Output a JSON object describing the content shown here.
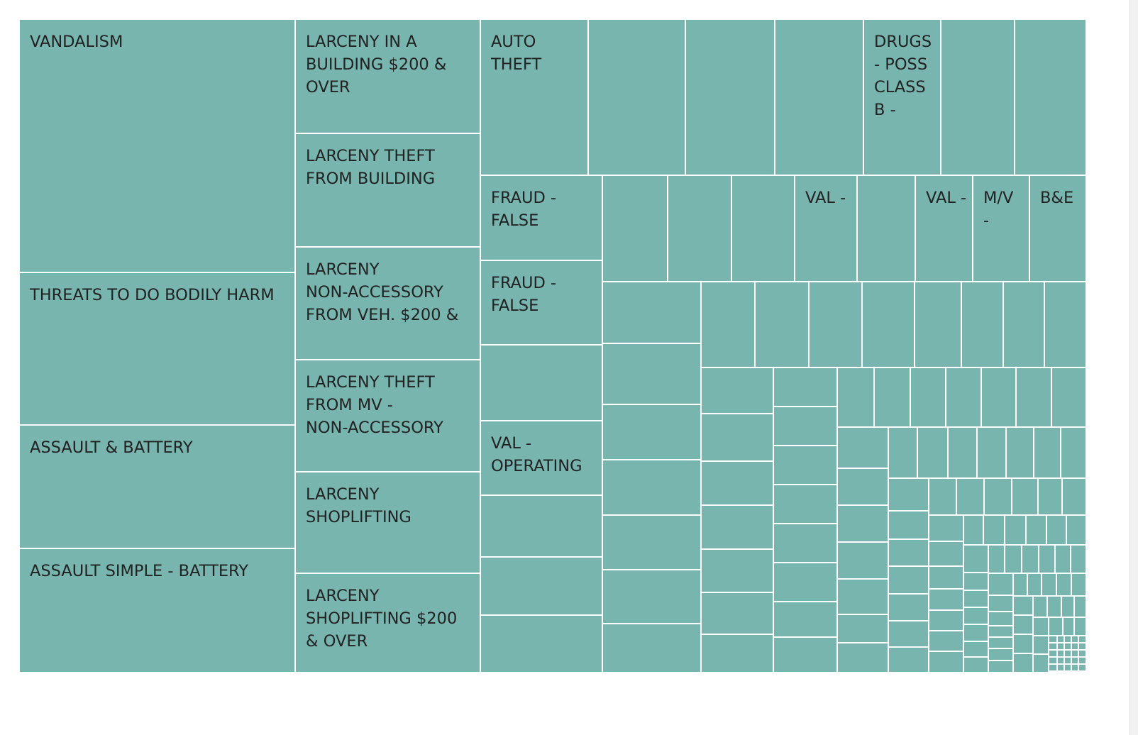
{
  "chart_data": {
    "type": "treemap",
    "title": "",
    "fill_color": "#77b5ae",
    "border_color": "#ffffff",
    "label_color": "#222222",
    "value_units": "relative area",
    "labeled_items": [
      {
        "label": "VANDALISM",
        "lines": [
          "VANDALISM"
        ],
        "value": 139.0
      },
      {
        "label": "THREATS TO DO BODILY HARM",
        "lines": [
          "THREATS TO DO BODILY HARM"
        ],
        "value": 84.0
      },
      {
        "label": "ASSAULT & BATTERY",
        "lines": [
          "ASSAULT & BATTERY"
        ],
        "value": 68.0
      },
      {
        "label": "ASSAULT SIMPLE - BATTERY",
        "lines": [
          "ASSAULT SIMPLE - BATTERY"
        ],
        "value": 68.0
      },
      {
        "label": "LARCENY IN A BUILDING $200 & OVER",
        "lines": [
          "LARCENY IN A",
          "BUILDING $200 &",
          "OVER"
        ],
        "value": 42.0
      },
      {
        "label": "LARCENY THEFT FROM BUILDING",
        "lines": [
          "LARCENY THEFT",
          "FROM BUILDING"
        ],
        "value": 42.0
      },
      {
        "label": "LARCENY NON-ACCESSORY FROM VEH. $200 &",
        "lines": [
          "LARCENY",
          "NON-ACCESSORY",
          "FROM VEH. $200 &"
        ],
        "value": 41.0
      },
      {
        "label": "LARCENY THEFT FROM MV - NON-ACCESSORY",
        "lines": [
          "LARCENY THEFT",
          "FROM MV -",
          "NON-ACCESSORY"
        ],
        "value": 41.0
      },
      {
        "label": "LARCENY SHOPLIFTING",
        "lines": [
          "LARCENY",
          "SHOPLIFTING"
        ],
        "value": 37.0
      },
      {
        "label": "LARCENY SHOPLIFTING $200 & OVER",
        "lines": [
          "LARCENY",
          "SHOPLIFTING $200",
          "& OVER"
        ],
        "value": 36.0
      },
      {
        "label": "AUTO THEFT",
        "lines": [
          "AUTO",
          "THEFT"
        ],
        "value": 34.0
      },
      {
        "label": "DRUGS - POSS CLASS B -",
        "lines": [
          "DRUGS",
          "- POSS",
          "CLASS",
          "B -"
        ],
        "value": 24.0
      },
      {
        "label": "FRAUD - FALSE",
        "lines": [
          "FRAUD -",
          "FALSE"
        ],
        "value": 20.5
      },
      {
        "label": "FRAUD - FALSE",
        "lines": [
          "FRAUD -",
          "FALSE"
        ],
        "value": 20.5
      },
      {
        "label": "VAL - OPERATING",
        "lines": [
          "VAL -",
          "OPERATING"
        ],
        "value": 18.0
      },
      {
        "label": "VAL -",
        "lines": [
          "VAL -"
        ],
        "value": 13.5
      },
      {
        "label": "VAL -",
        "lines": [
          "VAL -"
        ],
        "value": 12.4
      },
      {
        "label": "M/V -",
        "lines": [
          "M/V",
          "-"
        ],
        "value": 12.4
      },
      {
        "label": "B&E",
        "lines": [
          "B&E"
        ],
        "value": 12.4
      }
    ]
  }
}
